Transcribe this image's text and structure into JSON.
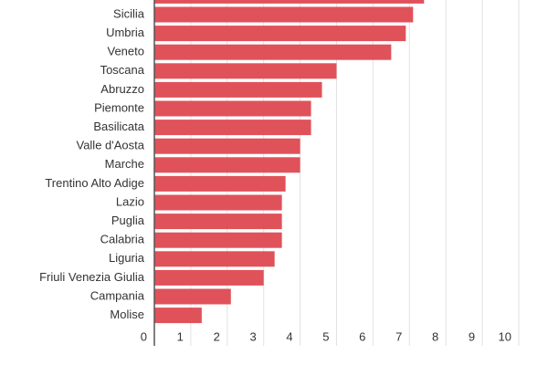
{
  "chart_data": {
    "type": "barh",
    "categories": [
      null,
      "Sicilia",
      "Umbria",
      "Veneto",
      "Toscana",
      "Abruzzo",
      "Piemonte",
      "Basilicata",
      "Valle d'Aosta",
      "Marche",
      "Trentino Alto Adige",
      "Lazio",
      "Puglia",
      "Calabria",
      "Liguria",
      "Friuli Venezia Giulia",
      "Campania",
      "Molise"
    ],
    "values": [
      7.4,
      7.1,
      6.9,
      6.5,
      5.0,
      4.6,
      4.3,
      4.3,
      4.0,
      4.0,
      3.6,
      3.5,
      3.5,
      3.5,
      3.3,
      3.0,
      2.1,
      1.3
    ],
    "color": "#e0525a",
    "xlim": [
      0,
      10
    ],
    "xticks": [
      0,
      1,
      2,
      3,
      4,
      5,
      6,
      7,
      8,
      9,
      10
    ],
    "grid": true
  }
}
